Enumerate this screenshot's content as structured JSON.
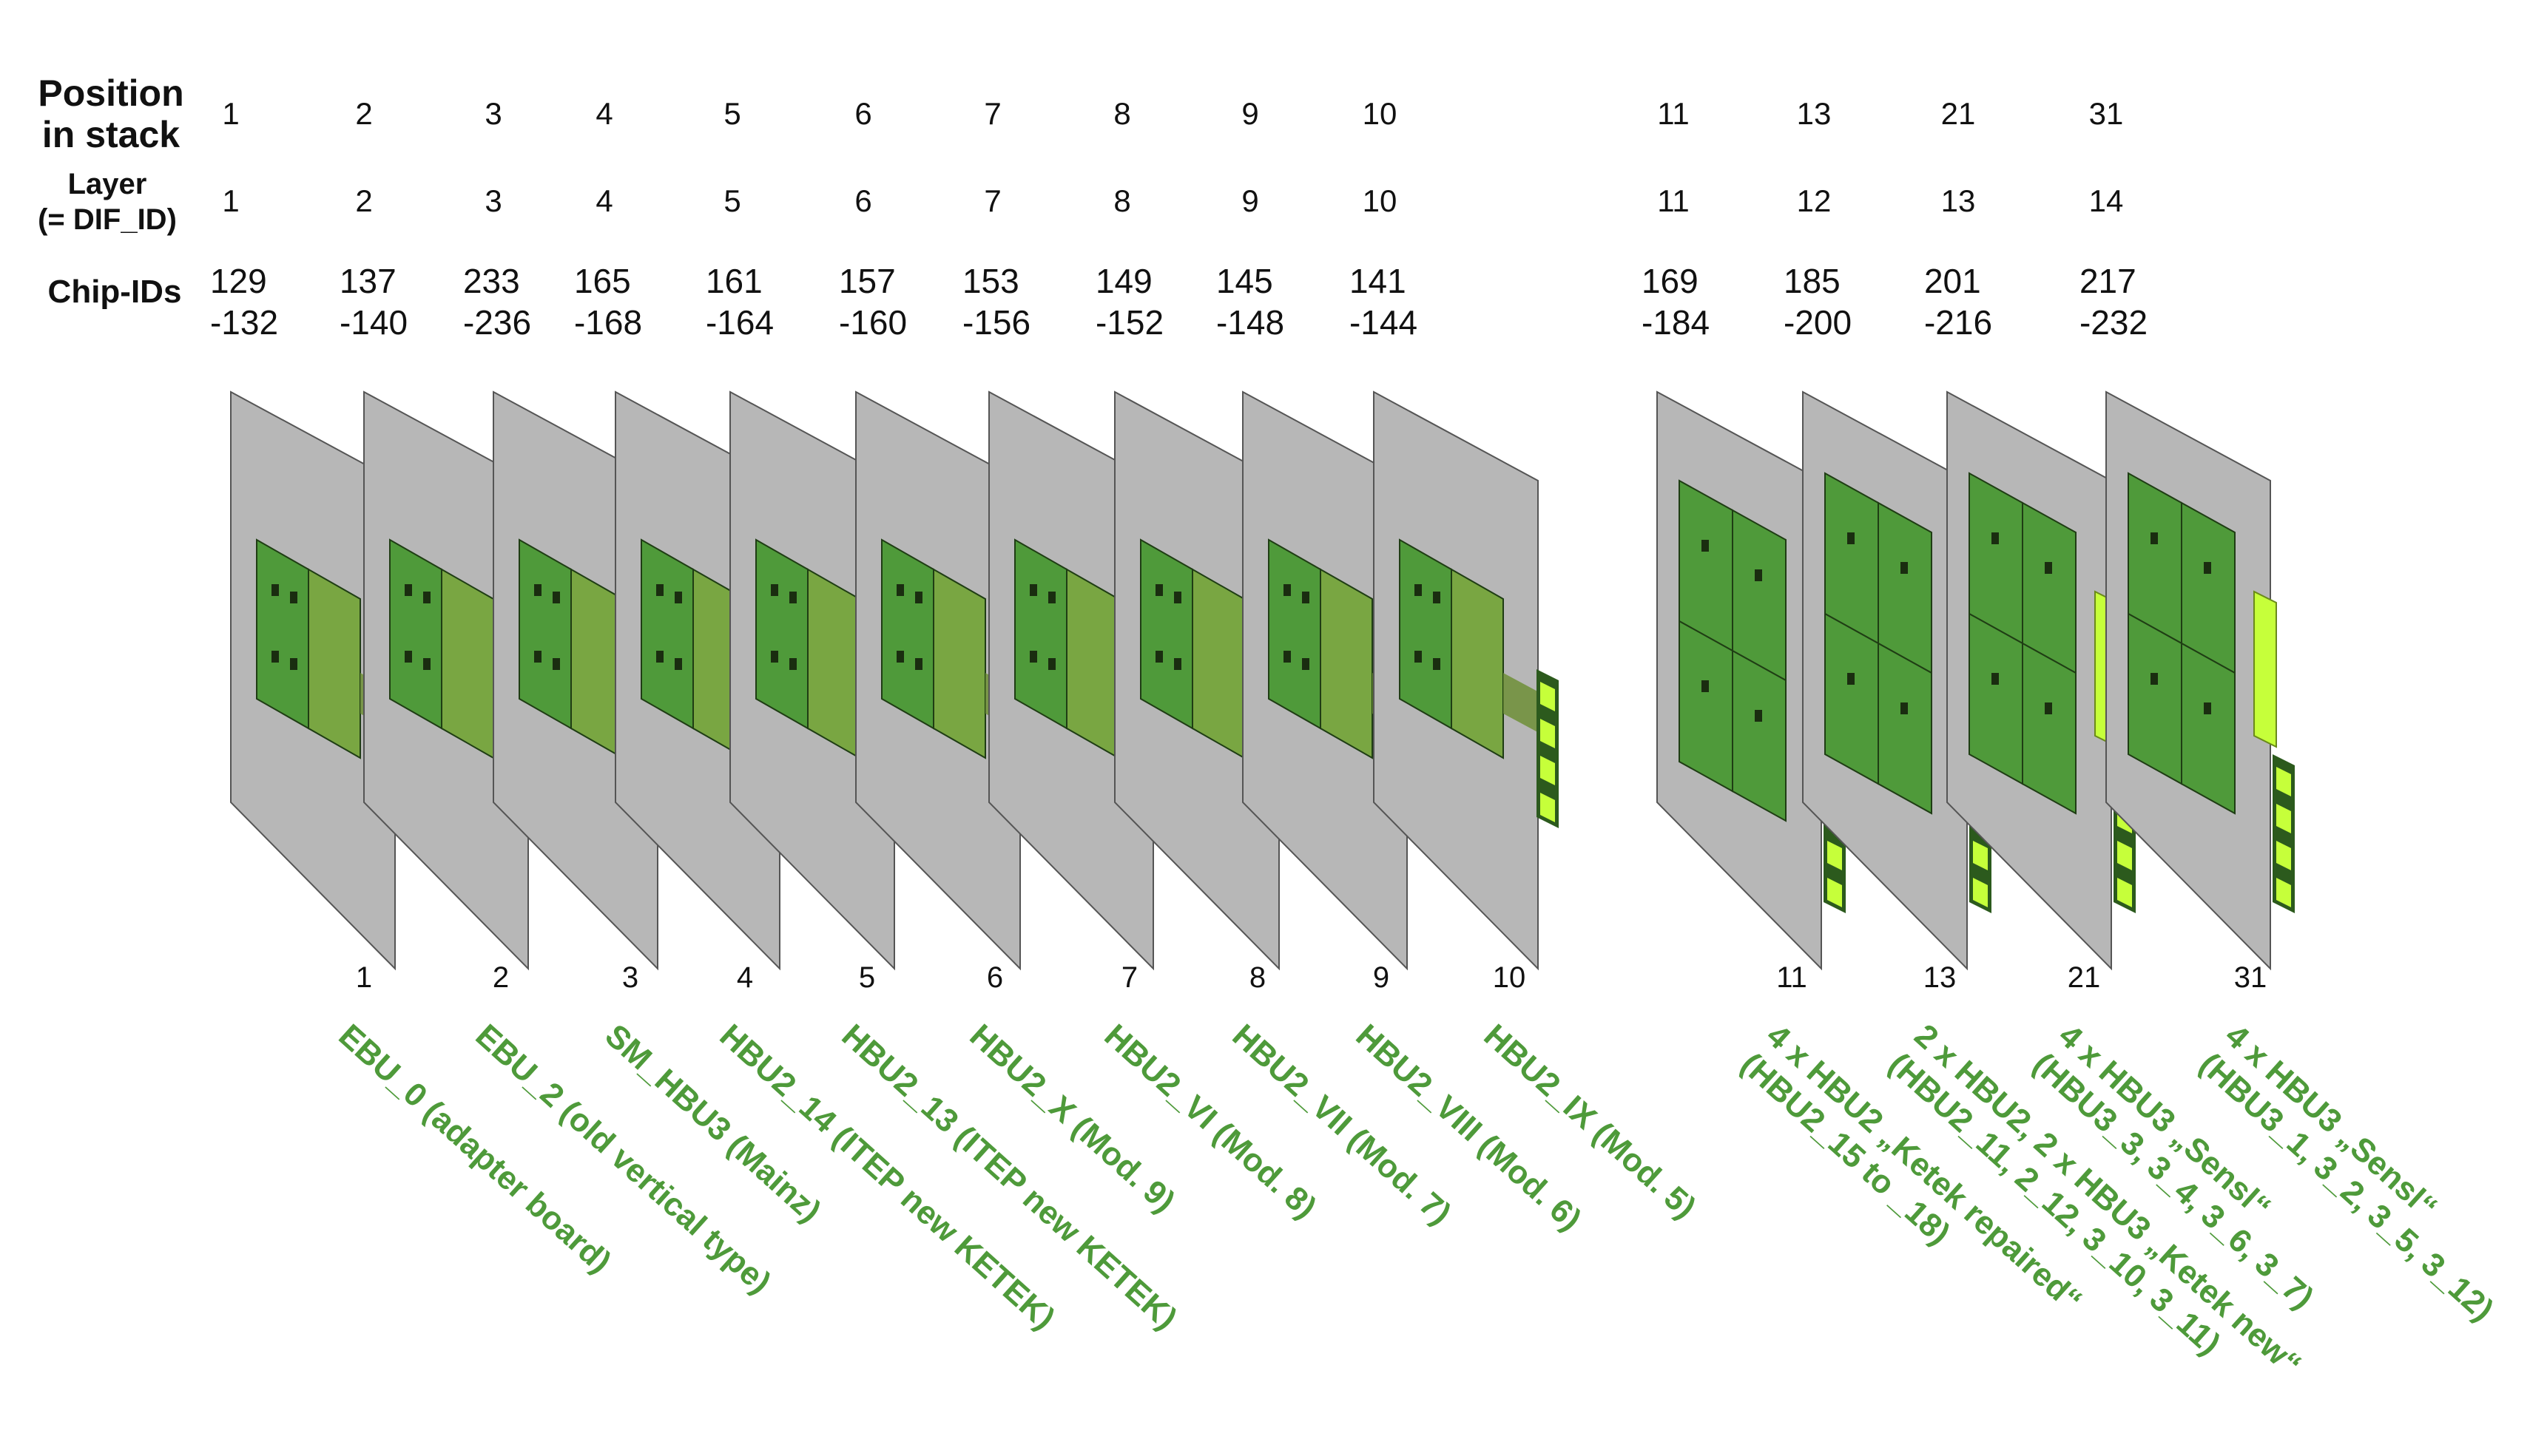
{
  "headers": {
    "position": "Position\nin stack",
    "layer": "Layer\n(= DIF_ID)",
    "chip": "Chip-IDs"
  },
  "colors": {
    "plate": "#b7b7b7",
    "board": "#4f9a3a",
    "board_light": "#79a642",
    "connector": "#c6ff3a",
    "label": "#4e9a3a"
  },
  "columns": [
    {
      "position": "1",
      "layer": "1",
      "chip": "129\n-132",
      "bottom": "1",
      "label": "EBU_0 (adapter board)"
    },
    {
      "position": "2",
      "layer": "2",
      "chip": "137\n-140",
      "bottom": "2",
      "label": "EBU_2 (old vertical type)"
    },
    {
      "position": "3",
      "layer": "3",
      "chip": "233\n-236",
      "bottom": "3",
      "label": "SM_HBU3 (Mainz)"
    },
    {
      "position": "4",
      "layer": "4",
      "chip": "165\n-168",
      "bottom": "4",
      "label": "HBU2_14 (ITEP new KETEK)"
    },
    {
      "position": "5",
      "layer": "5",
      "chip": "161\n-164",
      "bottom": "5",
      "label": "HBU2_13 (ITEP new KETEK)"
    },
    {
      "position": "6",
      "layer": "6",
      "chip": "157\n-160",
      "bottom": "6",
      "label": "HBU2_X (Mod. 9)"
    },
    {
      "position": "7",
      "layer": "7",
      "chip": "153\n-156",
      "bottom": "7",
      "label": "HBU2_VI (Mod. 8)"
    },
    {
      "position": "8",
      "layer": "8",
      "chip": "149\n-152",
      "bottom": "8",
      "label": "HBU2_VII (Mod. 7)"
    },
    {
      "position": "9",
      "layer": "9",
      "chip": "145\n-148",
      "bottom": "9",
      "label": "HBU2_VIII (Mod. 6)"
    },
    {
      "position": "10",
      "layer": "10",
      "chip": "141\n-144",
      "bottom": "10",
      "label": "HBU2_IX (Mod. 5)"
    },
    {
      "position": "11",
      "layer": "11",
      "chip": "169\n-184",
      "bottom": "11",
      "label": "4 x HBU2 „Ketek repaired“\n(HBU2_15 to _18)"
    },
    {
      "position": "13",
      "layer": "12",
      "chip": "185\n-200",
      "bottom": "13",
      "label": "2 x HBU2, 2 x HBU3 „Ketek new“\n(HBU2_11, 2_12, 3_10, 3_11)"
    },
    {
      "position": "21",
      "layer": "13",
      "chip": "201\n-216",
      "bottom": "21",
      "label": "4 x HBU3 „Sensl“\n(HBU3_3, 3_4, 3_6, 3_7)"
    },
    {
      "position": "31",
      "layer": "14",
      "chip": "217\n-232",
      "bottom": "31",
      "label": "4 x HBU3 „Sensl“\n(HBU3_1, 3_2, 3_5, 3_12)"
    }
  ]
}
